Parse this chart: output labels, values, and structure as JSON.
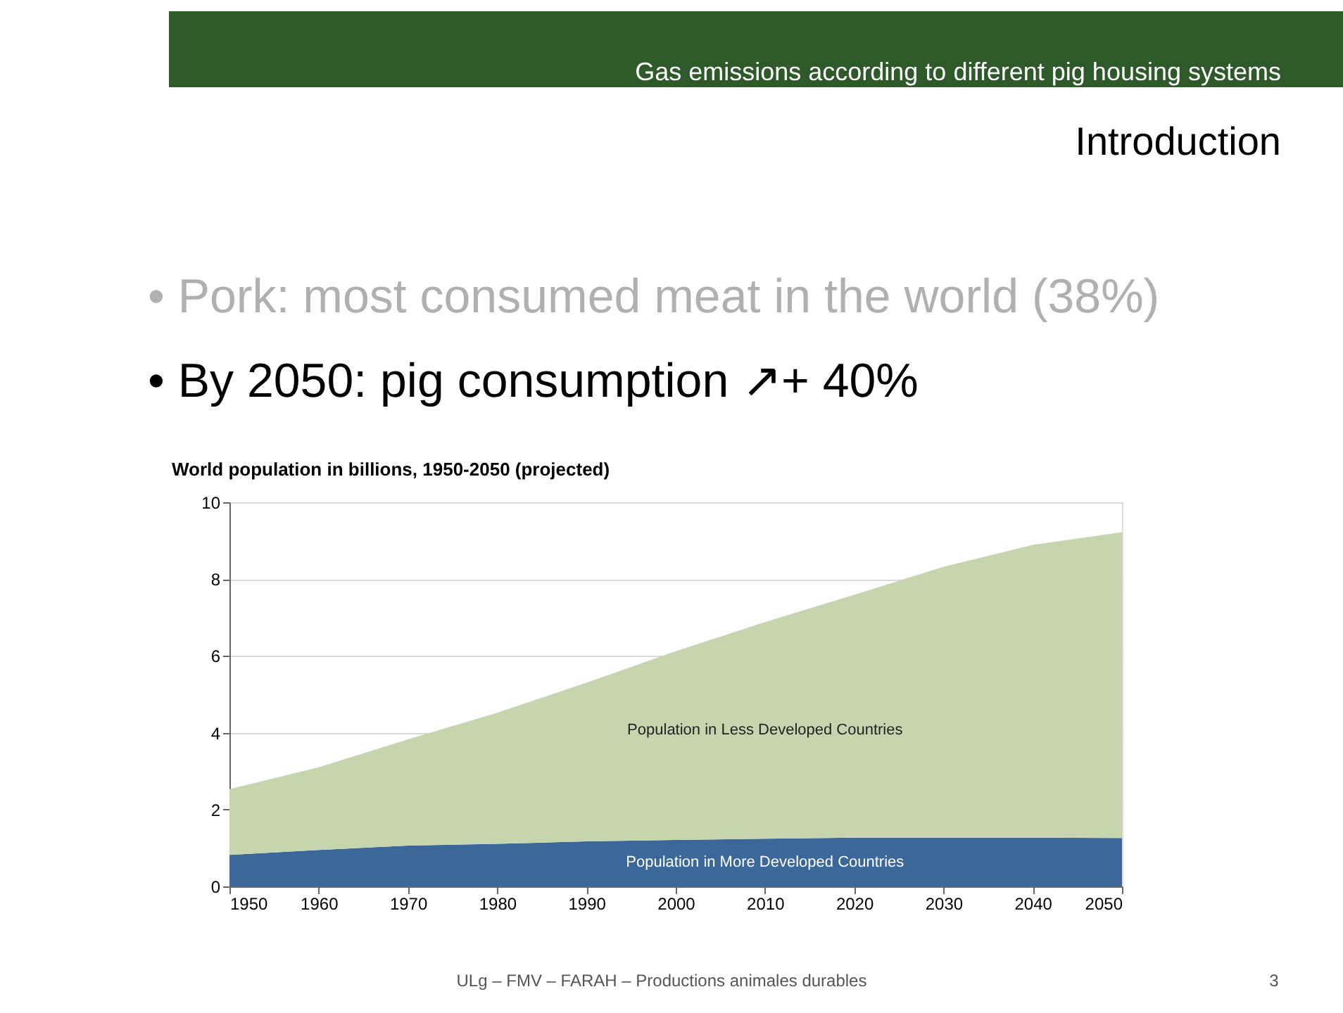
{
  "chart_data": {
    "type": "area",
    "title": "World population in billions, 1950-2050 (projected)",
    "x": [
      1950,
      1960,
      1970,
      1980,
      1990,
      2000,
      2010,
      2020,
      2030,
      2040,
      2050
    ],
    "series": [
      {
        "name": "Population in More Developed Countries",
        "color": "#3b6899",
        "values": [
          0.82,
          0.95,
          1.06,
          1.11,
          1.17,
          1.21,
          1.24,
          1.27,
          1.27,
          1.27,
          1.26
        ]
      },
      {
        "name": "Population in Less Developed Countries",
        "color": "#c6d5ae",
        "values": [
          1.71,
          2.15,
          2.77,
          3.41,
          4.13,
          4.91,
          5.64,
          6.32,
          7.05,
          7.62,
          7.96
        ]
      }
    ],
    "stacked": true,
    "xlim": [
      1950,
      2050
    ],
    "xticks": [
      1950,
      1960,
      1970,
      1980,
      1990,
      2000,
      2010,
      2020,
      2030,
      2040,
      2050
    ],
    "ylim": [
      0,
      10
    ],
    "yticks": [
      0,
      2,
      4,
      6,
      8,
      10
    ],
    "grid": "y",
    "annotations": [
      "Gas emissions according to different pig housing systems",
      "Introduction",
      "• Pork: most consumed meat in the world (38%)",
      "• By 2050: pig consumption ↗+ 40%",
      "ULg – FMV – FARAH – Productions animales durables",
      "3"
    ]
  }
}
